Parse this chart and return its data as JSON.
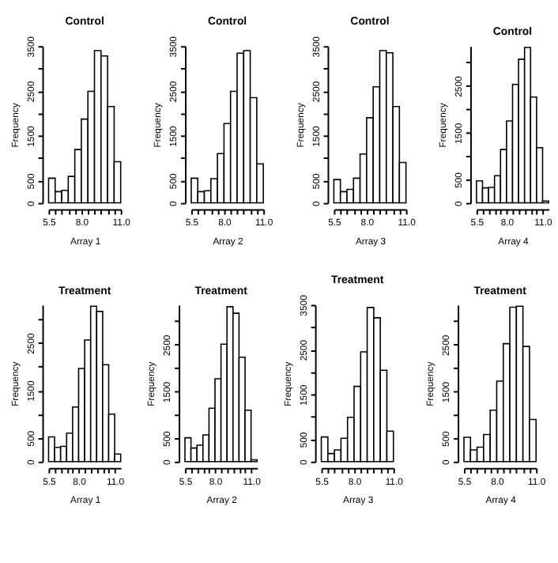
{
  "chart_data": [
    {
      "type": "histogram",
      "title": "Control",
      "xlabel": "Array 1",
      "ylabel": "Frequency",
      "bins": [
        5.5,
        6.0,
        6.5,
        7.0,
        7.5,
        8.0,
        8.5,
        9.0,
        9.5,
        10.0,
        10.5,
        11.0
      ],
      "values": [
        550,
        250,
        280,
        590,
        1190,
        1870,
        2490,
        3400,
        3280,
        2150,
        920
      ],
      "color": "#ffffff",
      "xlim": [
        5.5,
        11.0
      ],
      "ylim": [
        0,
        3500
      ],
      "xticks": [
        {
          "value": 5.5,
          "label": "5.5"
        },
        {
          "value": 6.0,
          "label": null
        },
        {
          "value": 6.5,
          "label": null
        },
        {
          "value": 7.0,
          "label": null
        },
        {
          "value": 7.5,
          "label": null
        },
        {
          "value": 8.0,
          "label": "8.0"
        },
        {
          "value": 8.5,
          "label": null
        },
        {
          "value": 9.0,
          "label": null
        },
        {
          "value": 9.5,
          "label": null
        },
        {
          "value": 10.0,
          "label": null
        },
        {
          "value": 10.5,
          "label": null
        },
        {
          "value": 11.0,
          "label": "11.0"
        }
      ],
      "yticks": [
        0,
        500,
        {
          "value": 1000,
          "label": null
        },
        1500,
        {
          "value": 2000,
          "label": null
        },
        2500,
        {
          "value": 3000,
          "label": null
        },
        3500
      ],
      "grid": false
    },
    {
      "type": "histogram",
      "title": "Control",
      "xlabel": "Array 2",
      "ylabel": "Frequency",
      "bins": [
        5.5,
        6.0,
        6.5,
        7.0,
        7.5,
        8.0,
        8.5,
        9.0,
        9.5,
        10.0,
        10.5,
        11.0
      ],
      "values": [
        550,
        250,
        270,
        540,
        1100,
        1770,
        2490,
        3340,
        3400,
        2350,
        870
      ],
      "color": "#ffffff",
      "xlim": [
        5.5,
        11.0
      ],
      "ylim": [
        0,
        3500
      ],
      "xticks": [
        {
          "value": 5.5,
          "label": "5.5"
        },
        {
          "value": 6.0,
          "label": null
        },
        {
          "value": 6.5,
          "label": null
        },
        {
          "value": 7.0,
          "label": null
        },
        {
          "value": 7.5,
          "label": null
        },
        {
          "value": 8.0,
          "label": "8.0"
        },
        {
          "value": 8.5,
          "label": null
        },
        {
          "value": 9.0,
          "label": null
        },
        {
          "value": 9.5,
          "label": null
        },
        {
          "value": 10.0,
          "label": null
        },
        {
          "value": 10.5,
          "label": null
        },
        {
          "value": 11.0,
          "label": "11.0"
        }
      ],
      "yticks": [
        0,
        500,
        {
          "value": 1000,
          "label": null
        },
        1500,
        {
          "value": 2000,
          "label": null
        },
        2500,
        {
          "value": 3000,
          "label": null
        },
        3500
      ],
      "grid": false
    },
    {
      "type": "histogram",
      "title": "Control",
      "xlabel": "Array 3",
      "ylabel": "Frequency",
      "bins": [
        5.5,
        6.0,
        6.5,
        7.0,
        7.5,
        8.0,
        8.5,
        9.0,
        9.5,
        10.0,
        10.5,
        11.0
      ],
      "values": [
        520,
        250,
        300,
        550,
        1090,
        1900,
        2590,
        3400,
        3350,
        2150,
        900
      ],
      "color": "#ffffff",
      "xlim": [
        5.5,
        11.0
      ],
      "ylim": [
        0,
        3500
      ],
      "xticks": [
        {
          "value": 5.5,
          "label": "5.5"
        },
        {
          "value": 6.0,
          "label": null
        },
        {
          "value": 6.5,
          "label": null
        },
        {
          "value": 7.0,
          "label": null
        },
        {
          "value": 7.5,
          "label": null
        },
        {
          "value": 8.0,
          "label": "8.0"
        },
        {
          "value": 8.5,
          "label": null
        },
        {
          "value": 9.0,
          "label": null
        },
        {
          "value": 9.5,
          "label": null
        },
        {
          "value": 10.0,
          "label": null
        },
        {
          "value": 10.5,
          "label": null
        },
        {
          "value": 11.0,
          "label": "11.0"
        }
      ],
      "yticks": [
        0,
        500,
        {
          "value": 1000,
          "label": null
        },
        1500,
        {
          "value": 2000,
          "label": null
        },
        2500,
        {
          "value": 3000,
          "label": null
        },
        3500
      ],
      "grid": false
    },
    {
      "type": "histogram",
      "title": "Control",
      "xlabel": "Array 4",
      "ylabel": "Frequency",
      "bins": [
        5.5,
        6.0,
        6.5,
        7.0,
        7.5,
        8.0,
        8.5,
        9.0,
        9.5,
        10.0,
        10.5,
        11.0,
        11.5
      ],
      "values": [
        470,
        320,
        330,
        580,
        1140,
        1750,
        2530,
        3070,
        3320,
        2260,
        1180,
        40
      ],
      "color": "#ffffff",
      "xlim": [
        5.5,
        11.5
      ],
      "ylim": [
        0,
        3350
      ],
      "xticks": [
        {
          "value": 5.5,
          "label": "5.5"
        },
        {
          "value": 6.0,
          "label": null
        },
        {
          "value": 6.5,
          "label": null
        },
        {
          "value": 7.0,
          "label": null
        },
        {
          "value": 7.5,
          "label": null
        },
        {
          "value": 8.0,
          "label": "8.0"
        },
        {
          "value": 8.5,
          "label": null
        },
        {
          "value": 9.0,
          "label": null
        },
        {
          "value": 9.5,
          "label": null
        },
        {
          "value": 10.0,
          "label": null
        },
        {
          "value": 10.5,
          "label": null
        },
        {
          "value": 11.0,
          "label": "11.0"
        }
      ],
      "yticks": [
        0,
        500,
        {
          "value": 1000,
          "label": null
        },
        1500,
        {
          "value": 2000,
          "label": null
        },
        2500,
        {
          "value": 3000,
          "label": null
        }
      ],
      "grid": false
    },
    {
      "type": "histogram",
      "title": "Treatment",
      "xlabel": "Array 1",
      "ylabel": "Frequency",
      "bins": [
        5.5,
        6.0,
        6.5,
        7.0,
        7.5,
        8.0,
        8.5,
        9.0,
        9.5,
        10.0,
        10.5,
        11.0,
        11.5
      ],
      "values": [
        520,
        300,
        320,
        600,
        1150,
        1960,
        2560,
        3270,
        3160,
        2040,
        1000,
        160
      ],
      "color": "#ffffff",
      "xlim": [
        5.5,
        11.5
      ],
      "ylim": [
        0,
        3300
      ],
      "xticks": [
        {
          "value": 5.5,
          "label": "5.5"
        },
        {
          "value": 6.0,
          "label": null
        },
        {
          "value": 6.5,
          "label": null
        },
        {
          "value": 7.0,
          "label": null
        },
        {
          "value": 7.5,
          "label": null
        },
        {
          "value": 8.0,
          "label": "8.0"
        },
        {
          "value": 8.5,
          "label": null
        },
        {
          "value": 9.0,
          "label": null
        },
        {
          "value": 9.5,
          "label": null
        },
        {
          "value": 10.0,
          "label": null
        },
        {
          "value": 10.5,
          "label": null
        },
        {
          "value": 11.0,
          "label": "11.0"
        }
      ],
      "yticks": [
        0,
        500,
        {
          "value": 1000,
          "label": null
        },
        1500,
        {
          "value": 2000,
          "label": null
        },
        2500,
        {
          "value": 3000,
          "label": null
        }
      ],
      "grid": false
    },
    {
      "type": "histogram",
      "title": "Treatment",
      "xlabel": "Array 2",
      "ylabel": "Frequency",
      "bins": [
        5.5,
        6.0,
        6.5,
        7.0,
        7.5,
        8.0,
        8.5,
        9.0,
        9.5,
        10.0,
        10.5,
        11.0,
        11.5
      ],
      "values": [
        510,
        290,
        350,
        570,
        1140,
        1770,
        2510,
        3310,
        3170,
        2230,
        1100,
        40
      ],
      "color": "#ffffff",
      "xlim": [
        5.5,
        11.5
      ],
      "ylim": [
        0,
        3350
      ],
      "xticks": [
        {
          "value": 5.5,
          "label": "5.5"
        },
        {
          "value": 6.0,
          "label": null
        },
        {
          "value": 6.5,
          "label": null
        },
        {
          "value": 7.0,
          "label": null
        },
        {
          "value": 7.5,
          "label": null
        },
        {
          "value": 8.0,
          "label": "8.0"
        },
        {
          "value": 8.5,
          "label": null
        },
        {
          "value": 9.0,
          "label": null
        },
        {
          "value": 9.5,
          "label": null
        },
        {
          "value": 10.0,
          "label": null
        },
        {
          "value": 10.5,
          "label": null
        },
        {
          "value": 11.0,
          "label": "11.0"
        }
      ],
      "yticks": [
        0,
        500,
        {
          "value": 1000,
          "label": null
        },
        1500,
        {
          "value": 2000,
          "label": null
        },
        2500,
        {
          "value": 3000,
          "label": null
        }
      ],
      "grid": false
    },
    {
      "type": "histogram",
      "title": "Treatment",
      "xlabel": "Array 3",
      "ylabel": "Frequency",
      "bins": [
        5.5,
        6.0,
        6.5,
        7.0,
        7.5,
        8.0,
        8.5,
        9.0,
        9.5,
        10.0,
        10.5,
        11.0
      ],
      "values": [
        550,
        180,
        260,
        520,
        990,
        1680,
        2450,
        3440,
        3210,
        2040,
        680
      ],
      "color": "#ffffff",
      "xlim": [
        5.5,
        11.0
      ],
      "ylim": [
        0,
        3500
      ],
      "xticks": [
        {
          "value": 5.5,
          "label": "5.5"
        },
        {
          "value": 6.0,
          "label": null
        },
        {
          "value": 6.5,
          "label": null
        },
        {
          "value": 7.0,
          "label": null
        },
        {
          "value": 7.5,
          "label": null
        },
        {
          "value": 8.0,
          "label": "8.0"
        },
        {
          "value": 8.5,
          "label": null
        },
        {
          "value": 9.0,
          "label": null
        },
        {
          "value": 9.5,
          "label": null
        },
        {
          "value": 10.0,
          "label": null
        },
        {
          "value": 10.5,
          "label": null
        },
        {
          "value": 11.0,
          "label": "11.0"
        }
      ],
      "yticks": [
        0,
        500,
        {
          "value": 1000,
          "label": null
        },
        1500,
        {
          "value": 2000,
          "label": null
        },
        2500,
        {
          "value": 3000,
          "label": null
        },
        3500
      ],
      "grid": false
    },
    {
      "type": "histogram",
      "title": "Treatment",
      "xlabel": "Array 4",
      "ylabel": "Frequency",
      "bins": [
        5.5,
        6.0,
        6.5,
        7.0,
        7.5,
        8.0,
        8.5,
        9.0,
        9.5,
        10.0,
        10.5,
        11.0
      ],
      "values": [
        520,
        250,
        310,
        580,
        1100,
        1720,
        2520,
        3300,
        3320,
        2460,
        900
      ],
      "color": "#ffffff",
      "xlim": [
        5.5,
        11.0
      ],
      "ylim": [
        0,
        3350
      ],
      "xticks": [
        {
          "value": 5.5,
          "label": "5.5"
        },
        {
          "value": 6.0,
          "label": null
        },
        {
          "value": 6.5,
          "label": null
        },
        {
          "value": 7.0,
          "label": null
        },
        {
          "value": 7.5,
          "label": null
        },
        {
          "value": 8.0,
          "label": "8.0"
        },
        {
          "value": 8.5,
          "label": null
        },
        {
          "value": 9.0,
          "label": null
        },
        {
          "value": 9.5,
          "label": null
        },
        {
          "value": 10.0,
          "label": null
        },
        {
          "value": 10.5,
          "label": null
        },
        {
          "value": 11.0,
          "label": "11.0"
        }
      ],
      "yticks": [
        0,
        500,
        {
          "value": 1000,
          "label": null
        },
        1500,
        {
          "value": 2000,
          "label": null
        },
        2500,
        {
          "value": 3000,
          "label": null
        }
      ],
      "grid": false
    }
  ]
}
